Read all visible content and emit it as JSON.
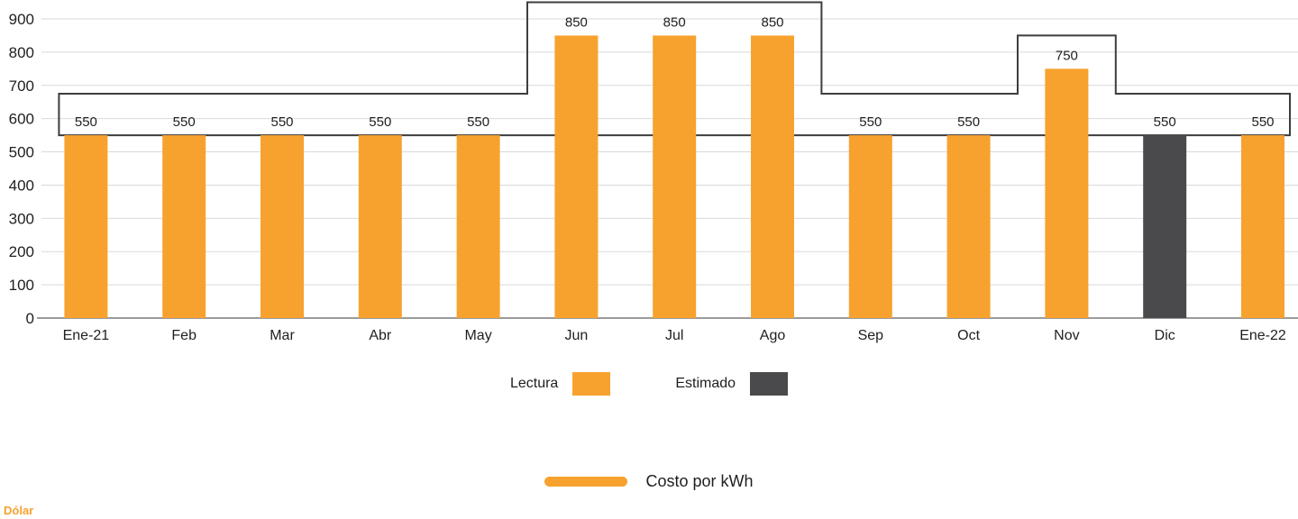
{
  "colors": {
    "lectura": "#F7A22E",
    "estimado": "#4A4A4C",
    "outline": "#3D3D3D",
    "grid": "#D9D9D9",
    "axis": "#9B9B9B",
    "text": "#1F1F1F"
  },
  "chart_data": {
    "type": "bar",
    "title": "",
    "xlabel": "",
    "ylabel": "",
    "ylim": [
      0,
      900
    ],
    "ytick_step": 100,
    "grid": true,
    "legend_position": "bottom",
    "categories": [
      "Ene-21",
      "Feb",
      "Mar",
      "Abr",
      "May",
      "Jun",
      "Jul",
      "Ago",
      "Sep",
      "Oct",
      "Nov",
      "Dic",
      "Ene-22"
    ],
    "series": [
      {
        "name": "Lectura",
        "color": "#F7A22E"
      },
      {
        "name": "Estimado",
        "color": "#4A4A4C"
      }
    ],
    "bars": [
      {
        "category": "Ene-21",
        "value": 550,
        "label": "550",
        "series": "Lectura"
      },
      {
        "category": "Feb",
        "value": 550,
        "label": "550",
        "series": "Lectura"
      },
      {
        "category": "Mar",
        "value": 550,
        "label": "550",
        "series": "Lectura"
      },
      {
        "category": "Abr",
        "value": 550,
        "label": "550",
        "series": "Lectura"
      },
      {
        "category": "May",
        "value": 550,
        "label": "550",
        "series": "Lectura"
      },
      {
        "category": "Jun",
        "value": 850,
        "label": "850",
        "series": "Lectura"
      },
      {
        "category": "Jul",
        "value": 850,
        "label": "850",
        "series": "Lectura"
      },
      {
        "category": "Ago",
        "value": 850,
        "label": "850",
        "series": "Lectura"
      },
      {
        "category": "Sep",
        "value": 550,
        "label": "550",
        "series": "Lectura"
      },
      {
        "category": "Oct",
        "value": 550,
        "label": "550",
        "series": "Lectura"
      },
      {
        "category": "Nov",
        "value": 750,
        "label": "750",
        "series": "Lectura"
      },
      {
        "category": "Dic",
        "value": 550,
        "label": "550",
        "series": "Estimado"
      },
      {
        "category": "Ene-22",
        "value": 550,
        "label": "550",
        "series": "Lectura"
      }
    ],
    "step_outline": {
      "description": "stepped outline band drawn around the monthly bars",
      "lower": 550,
      "upper": [
        675,
        675,
        675,
        675,
        675,
        950,
        950,
        950,
        675,
        675,
        850,
        675,
        675
      ]
    }
  },
  "legend1": {
    "items": [
      {
        "label": "Lectura",
        "color": "#F7A22E"
      },
      {
        "label": "Estimado",
        "color": "#4A4A4C"
      }
    ]
  },
  "legend2": {
    "label": "Costo por kWh",
    "color": "#F7A22E"
  },
  "footer": {
    "label": "Dólar",
    "color": "#F7A22E"
  }
}
